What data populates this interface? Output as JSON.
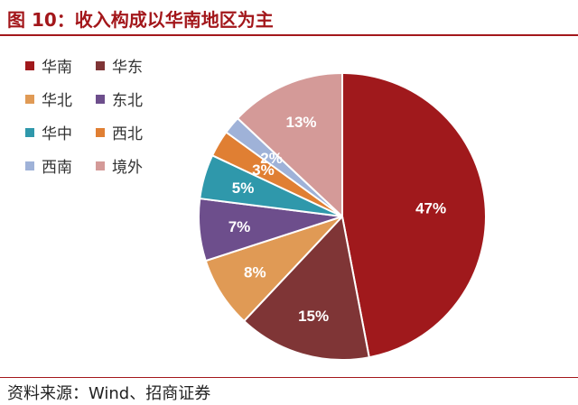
{
  "page": {
    "title": "图 10：收入构成以华南地区为主",
    "source": "资料来源：Wind、招商证券"
  },
  "chart_data": {
    "type": "pie",
    "title": "",
    "slices": [
      {
        "name": "华南",
        "value": 47,
        "label": "47%",
        "color": "#a0191c"
      },
      {
        "name": "华东",
        "value": 15,
        "label": "15%",
        "color": "#7f3536"
      },
      {
        "name": "华北",
        "value": 8,
        "label": "8%",
        "color": "#e09a55"
      },
      {
        "name": "东北",
        "value": 7,
        "label": "7%",
        "color": "#6d4e8c"
      },
      {
        "name": "华中",
        "value": 5,
        "label": "5%",
        "color": "#2f98ab"
      },
      {
        "name": "西北",
        "value": 3,
        "label": "3%",
        "color": "#e07f33"
      },
      {
        "name": "西南",
        "value": 2,
        "label": "2%",
        "color": "#9fb2d8"
      },
      {
        "name": "境外",
        "value": 13,
        "label": "13%",
        "color": "#d49a98"
      }
    ],
    "legend_position": "left",
    "start_angle": "12 o'clock, clockwise"
  }
}
